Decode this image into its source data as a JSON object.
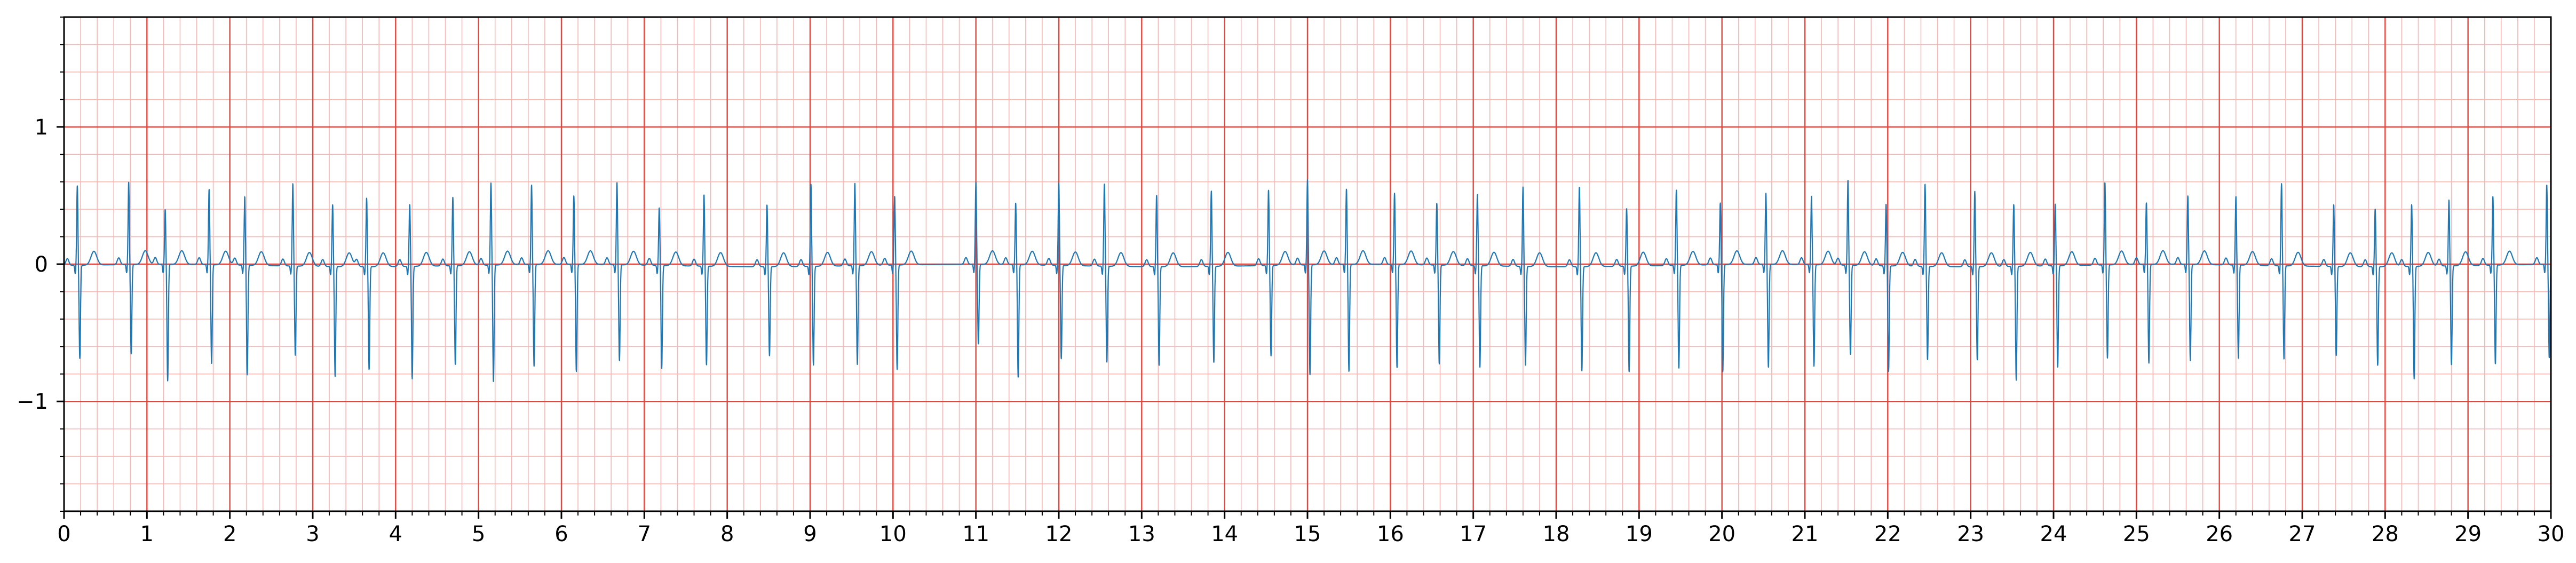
{
  "chart_data": {
    "type": "line",
    "title": "",
    "xlabel": "",
    "ylabel": "",
    "xlim": [
      0,
      30
    ],
    "ylim": [
      -1.8,
      1.8
    ],
    "x_ticks": [
      "0",
      "1",
      "2",
      "3",
      "4",
      "5",
      "6",
      "7",
      "8",
      "9",
      "10",
      "11",
      "12",
      "13",
      "14",
      "15",
      "16",
      "17",
      "18",
      "19",
      "20",
      "21",
      "22",
      "23",
      "24",
      "25",
      "26",
      "27",
      "28",
      "29",
      "30"
    ],
    "y_ticks": [
      {
        "value": 1,
        "label": "1"
      },
      {
        "value": 0,
        "label": "0"
      },
      {
        "value": -1,
        "label": "−1"
      }
    ],
    "grid": {
      "major": true,
      "major_x_step": 1,
      "major_y_step": 1,
      "minor": true,
      "minor_x_step": 0.2,
      "minor_y_step": 0.2,
      "major_color": "#e8443a",
      "minor_color": "#f6b8b4"
    },
    "series": [
      {
        "color": "#1f77b4",
        "beat_times": [
          0.16,
          0.78,
          1.22,
          1.75,
          2.18,
          2.76,
          3.24,
          3.65,
          4.17,
          4.69,
          5.15,
          5.64,
          6.15,
          6.67,
          7.18,
          7.72,
          8.48,
          9.01,
          9.54,
          10.02,
          11.0,
          11.48,
          12.0,
          12.55,
          13.18,
          13.84,
          14.53,
          15.0,
          15.47,
          16.05,
          16.56,
          17.05,
          17.6,
          18.28,
          18.85,
          19.45,
          19.98,
          20.53,
          21.08,
          21.52,
          21.98,
          22.45,
          23.05,
          23.52,
          24.02,
          24.62,
          25.12,
          25.62,
          26.2,
          26.75,
          27.38,
          27.88,
          28.32,
          28.77,
          29.3,
          29.95
        ],
        "r_amplitudes": [
          0.58,
          0.6,
          0.4,
          0.55,
          0.5,
          0.6,
          0.45,
          0.5,
          0.45,
          0.5,
          0.6,
          0.58,
          0.5,
          0.6,
          0.42,
          0.52,
          0.45,
          0.6,
          0.6,
          0.5,
          0.6,
          0.45,
          0.6,
          0.6,
          0.52,
          0.55,
          0.55,
          0.62,
          0.55,
          0.52,
          0.45,
          0.52,
          0.58,
          0.58,
          0.42,
          0.55,
          0.45,
          0.52,
          0.5,
          0.62,
          0.45,
          0.6,
          0.55,
          0.45,
          0.45,
          0.6,
          0.45,
          0.5,
          0.5,
          0.6,
          0.45,
          0.42,
          0.45,
          0.48,
          0.5,
          0.58
        ],
        "s_amplitudes": [
          -0.68,
          -0.65,
          -0.85,
          -0.72,
          -0.8,
          -0.65,
          -0.8,
          -0.75,
          -0.82,
          -0.72,
          -0.85,
          -0.74,
          -0.78,
          -0.7,
          -0.75,
          -0.72,
          -0.65,
          -0.72,
          -0.72,
          -0.76,
          -0.58,
          -0.82,
          -0.68,
          -0.7,
          -0.72,
          -0.7,
          -0.66,
          -0.8,
          -0.78,
          -0.75,
          -0.72,
          -0.74,
          -0.72,
          -0.76,
          -0.77,
          -0.75,
          -0.78,
          -0.75,
          -0.74,
          -0.65,
          -0.77,
          -0.68,
          -0.68,
          -0.83,
          -0.74,
          -0.68,
          -0.72,
          -0.7,
          -0.68,
          -0.68,
          -0.65,
          -0.72,
          -0.82,
          -0.72,
          -0.72,
          -0.68
        ]
      }
    ]
  }
}
